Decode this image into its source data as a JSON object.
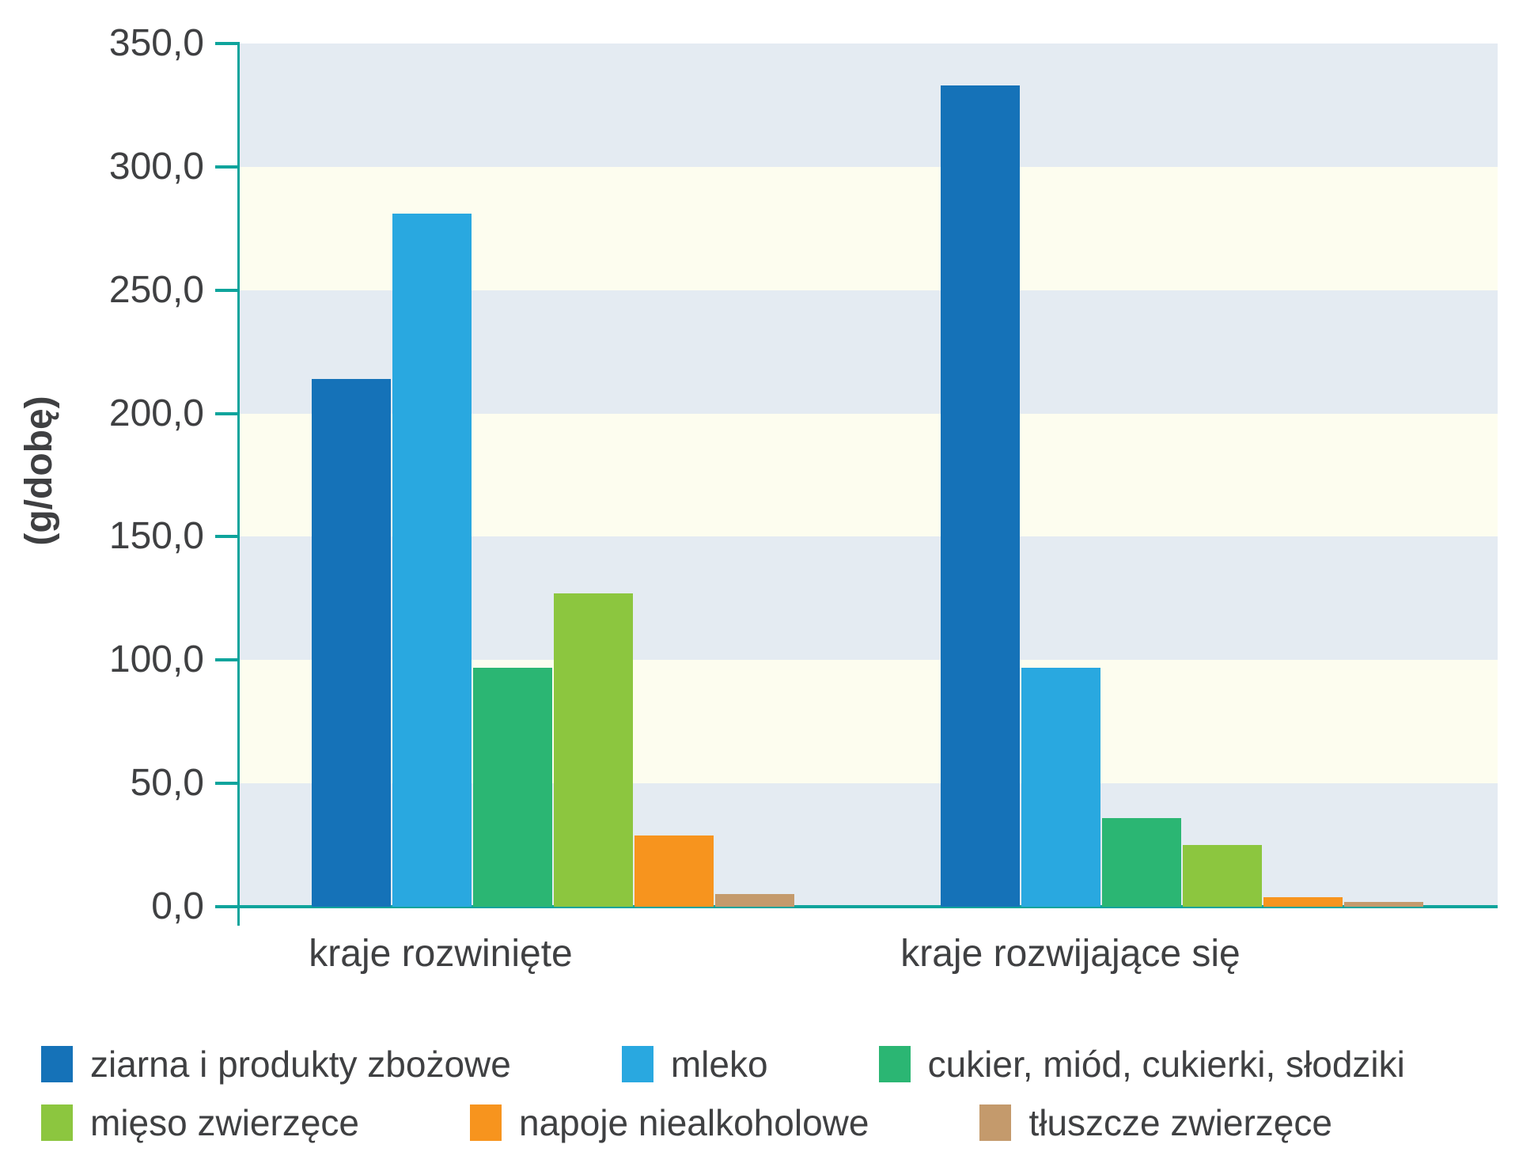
{
  "chart_data": {
    "type": "bar",
    "title": "",
    "ylabel": "(g/dobę)",
    "xlabel": "",
    "categories": [
      "kraje rozwinięte",
      "kraje rozwijające się"
    ],
    "series": [
      {
        "name": "ziarna i produkty zbożowe",
        "color": "#1572B8",
        "values": [
          214,
          333
        ]
      },
      {
        "name": "mleko",
        "color": "#29A8E0",
        "values": [
          281,
          97
        ]
      },
      {
        "name": "cukier, miód, cukierki, słodziki",
        "color": "#2BB673",
        "values": [
          97,
          36
        ]
      },
      {
        "name": "mięso zwierzęce",
        "color": "#8CC63F",
        "values": [
          127,
          25
        ]
      },
      {
        "name": "napoje niealkoholowe",
        "color": "#F7941E",
        "values": [
          29,
          4
        ]
      },
      {
        "name": "tłuszcze zwierzęce",
        "color": "#C49A6C",
        "values": [
          5,
          2
        ]
      }
    ],
    "ylim": [
      0,
      350
    ],
    "ytick_step": 50,
    "ytick_labels": [
      "0,0",
      "50,0",
      "100,0",
      "150,0",
      "200,0",
      "250,0",
      "300,0",
      "350,0"
    ],
    "grid": "alternating horizontal background bands every 50 units",
    "legend_position": "bottom",
    "colors": {
      "axis": "#0EA49C",
      "band_blue_gray": "#E4EBF2",
      "band_cream": "#FDFDEF",
      "text": "#3F4042"
    }
  }
}
